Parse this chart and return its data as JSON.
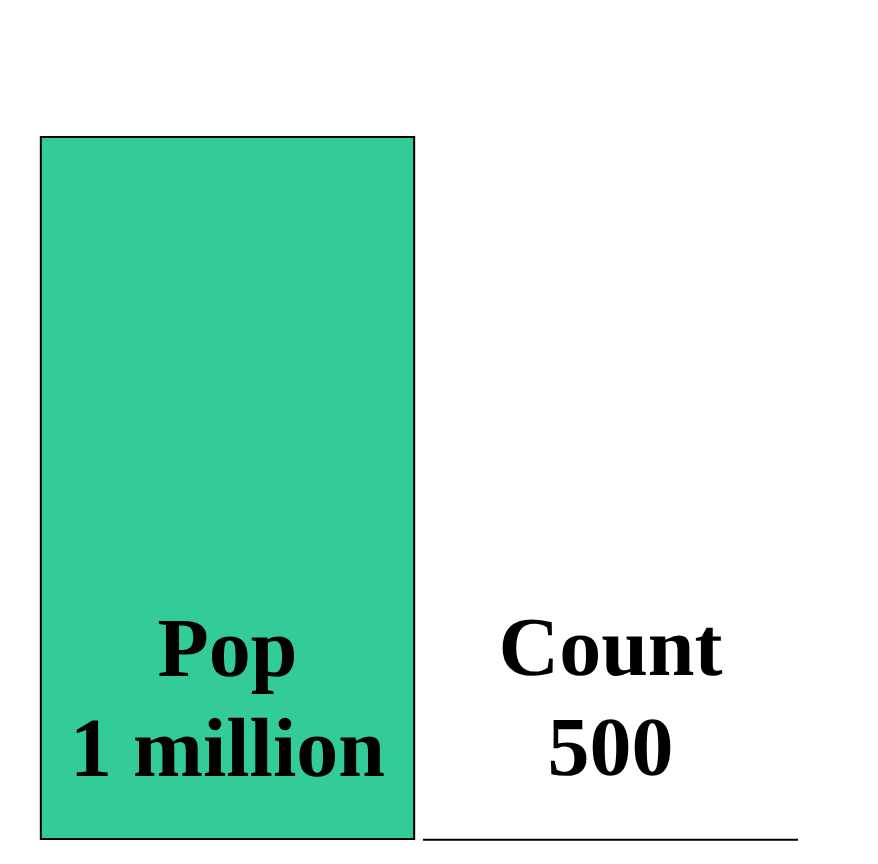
{
  "chart_data": {
    "type": "bar",
    "categories": [
      "Pop",
      "Count"
    ],
    "values": [
      1000000,
      500
    ],
    "colors": [
      "#33cc99",
      "#333399"
    ],
    "value_labels": [
      "1 million",
      "500"
    ]
  }
}
